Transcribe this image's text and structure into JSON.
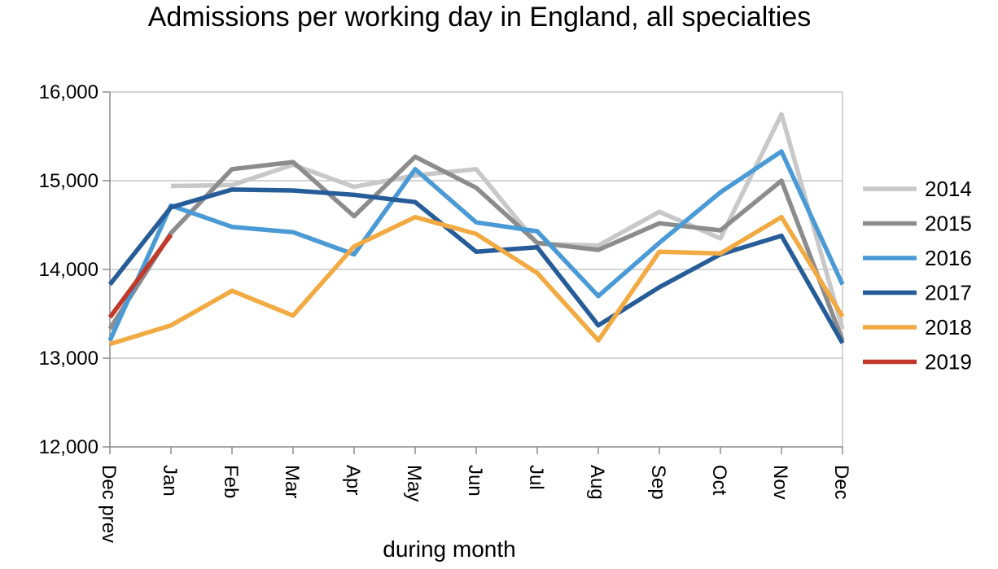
{
  "chart_data": {
    "type": "line",
    "title": "Admissions per working day in England, all specialties",
    "xlabel": "during month",
    "ylabel": "",
    "categories": [
      "Dec prev",
      "Jan",
      "Feb",
      "Mar",
      "Apr",
      "May",
      "Jun",
      "Jul",
      "Aug",
      "Sep",
      "Oct",
      "Nov",
      "Dec"
    ],
    "ylim": [
      12000,
      16000
    ],
    "yticks": [
      12000,
      13000,
      14000,
      15000,
      16000
    ],
    "ytick_labels": [
      "12,000",
      "13,000",
      "14,000",
      "15,000",
      "16,000"
    ],
    "grid": true,
    "legend": "right",
    "series": [
      {
        "name": "2014",
        "color": "#c8c8c8",
        "values": [
          null,
          14940,
          14950,
          15180,
          14930,
          15060,
          15130,
          14290,
          14270,
          14650,
          14350,
          15750,
          13330
        ]
      },
      {
        "name": "2015",
        "color": "#8c8c8c",
        "values": [
          13330,
          14410,
          15130,
          15210,
          14600,
          15270,
          14920,
          14300,
          14220,
          14520,
          14440,
          15000,
          13200
        ]
      },
      {
        "name": "2016",
        "color": "#4a9ad6",
        "values": [
          13200,
          14720,
          14480,
          14420,
          14170,
          15130,
          14530,
          14430,
          13700,
          14300,
          14870,
          15330,
          13830
        ]
      },
      {
        "name": "2017",
        "color": "#265c97",
        "values": [
          13830,
          14700,
          14900,
          14890,
          14840,
          14760,
          14200,
          14250,
          13370,
          13800,
          14170,
          14380,
          13170
        ]
      },
      {
        "name": "2018",
        "color": "#f2aa43",
        "values": [
          13160,
          13370,
          13760,
          13480,
          14260,
          14590,
          14400,
          13960,
          13200,
          14200,
          14180,
          14590,
          13470
        ]
      },
      {
        "name": "2019",
        "color": "#c0392b",
        "values": [
          13460,
          14390,
          null,
          null,
          null,
          null,
          null,
          null,
          null,
          null,
          null,
          null,
          null
        ]
      }
    ]
  }
}
